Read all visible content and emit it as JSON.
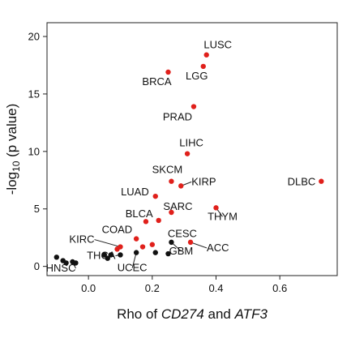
{
  "chart_data": {
    "type": "scatter",
    "title": "",
    "xlabel": {
      "prefix": "Rho of ",
      "gene1": "CD274",
      "middle": " and ",
      "gene2": "ATF3"
    },
    "ylabel": {
      "prefix": "-log",
      "sub": "10",
      "suffix": " (p value)"
    },
    "xlim": [
      -0.13,
      0.78
    ],
    "ylim": [
      -0.8,
      21.2
    ],
    "xticks": [
      0.0,
      0.2,
      0.4,
      0.6
    ],
    "xtick_labels": [
      "0.0",
      "0.2",
      "0.4",
      "0.6"
    ],
    "yticks": [
      0,
      5,
      10,
      15,
      20
    ],
    "ytick_labels": [
      "0",
      "5",
      "10",
      "15",
      "20"
    ],
    "grid": false,
    "colors": {
      "significant": "#e0201b",
      "nonsignificant": "#111111"
    },
    "points": [
      {
        "label": "LUSC",
        "x": 0.37,
        "y": 18.4,
        "sig": true
      },
      {
        "label": "LGG",
        "x": 0.36,
        "y": 17.4,
        "sig": true
      },
      {
        "label": "BRCA",
        "x": 0.25,
        "y": 16.9,
        "sig": true
      },
      {
        "label": "PRAD",
        "x": 0.33,
        "y": 13.9,
        "sig": true
      },
      {
        "label": "LIHC",
        "x": 0.31,
        "y": 9.8,
        "sig": true
      },
      {
        "label": "SKCM",
        "x": 0.26,
        "y": 7.4,
        "sig": true
      },
      {
        "label": "KIRP",
        "x": 0.29,
        "y": 7.0,
        "sig": true
      },
      {
        "label": "DLBC",
        "x": 0.73,
        "y": 7.4,
        "sig": true
      },
      {
        "label": "LUAD",
        "x": 0.21,
        "y": 6.1,
        "sig": true
      },
      {
        "label": "THYM",
        "x": 0.4,
        "y": 5.1,
        "sig": true
      },
      {
        "label": "SARC",
        "x": 0.26,
        "y": 4.7,
        "sig": true
      },
      {
        "label": "BLCA",
        "x": 0.22,
        "y": 4.0,
        "sig": true
      },
      {
        "label": "",
        "x": 0.18,
        "y": 3.9,
        "sig": true
      },
      {
        "label": "COAD",
        "x": 0.15,
        "y": 2.4,
        "sig": true
      },
      {
        "label": "CESC",
        "x": 0.2,
        "y": 1.9,
        "sig": true
      },
      {
        "label": "KIRC",
        "x": 0.1,
        "y": 1.7,
        "sig": true
      },
      {
        "label": "",
        "x": 0.09,
        "y": 1.5,
        "sig": true
      },
      {
        "label": "",
        "x": 0.17,
        "y": 1.7,
        "sig": true
      },
      {
        "label": "ACC",
        "x": 0.32,
        "y": 2.1,
        "sig": true
      },
      {
        "label": "GBM",
        "x": 0.26,
        "y": 2.1,
        "sig": false
      },
      {
        "label": "UCEC",
        "x": 0.15,
        "y": 1.2,
        "sig": false
      },
      {
        "label": "THCA",
        "x": 0.1,
        "y": 1.0,
        "sig": false
      },
      {
        "label": "",
        "x": 0.07,
        "y": 1.0,
        "sig": false
      },
      {
        "label": "",
        "x": 0.05,
        "y": 1.0,
        "sig": false
      },
      {
        "label": "",
        "x": 0.21,
        "y": 1.2,
        "sig": false
      },
      {
        "label": "",
        "x": 0.25,
        "y": 1.1,
        "sig": false
      },
      {
        "label": "",
        "x": 0.06,
        "y": 0.7,
        "sig": false
      },
      {
        "label": "HNSC",
        "x": -0.05,
        "y": 0.4,
        "sig": false
      },
      {
        "label": "",
        "x": -0.1,
        "y": 0.8,
        "sig": false
      },
      {
        "label": "",
        "x": -0.08,
        "y": 0.5,
        "sig": false
      },
      {
        "label": "",
        "x": -0.07,
        "y": 0.3,
        "sig": false
      },
      {
        "label": "",
        "x": -0.04,
        "y": 0.3,
        "sig": false
      }
    ]
  }
}
